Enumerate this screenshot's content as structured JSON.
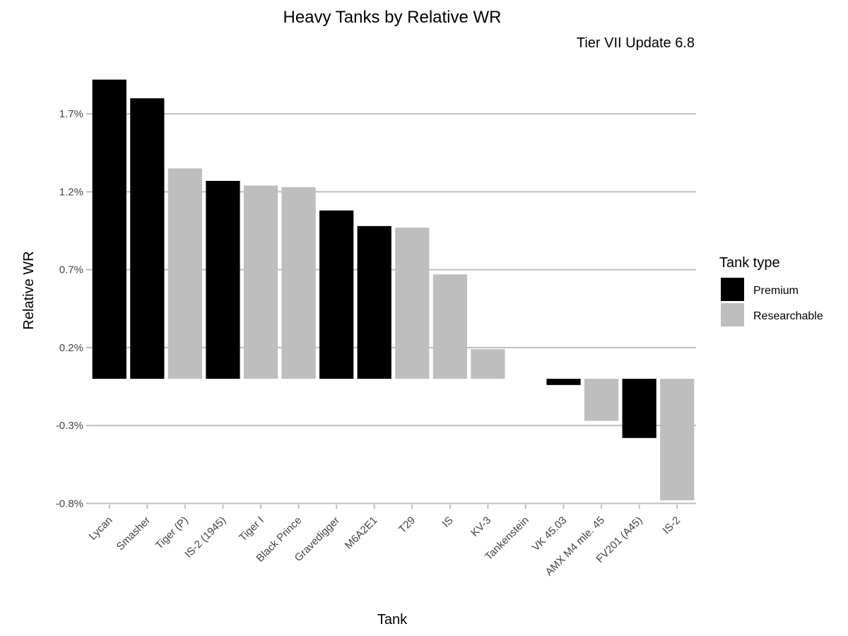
{
  "chart_data": {
    "type": "bar",
    "title": "Heavy Tanks by Relative WR",
    "subtitle": "Tier VII Update 6.8",
    "xlabel": "Tank",
    "ylabel": "Relative WR",
    "ylim": [
      -0.85,
      1.95
    ],
    "yticks": [
      {
        "value": 1.7,
        "label": "1.7%"
      },
      {
        "value": 1.2,
        "label": "1.2%"
      },
      {
        "value": 0.7,
        "label": "0.7%"
      },
      {
        "value": 0.2,
        "label": "0.2%"
      },
      {
        "value": -0.3,
        "label": "-0.3%"
      },
      {
        "value": -0.8,
        "label": "-0.8%"
      }
    ],
    "grid": "horizontal major",
    "legend": {
      "title": "Tank type",
      "position": "right",
      "items": [
        {
          "name": "Premium",
          "color": "#000000"
        },
        {
          "name": "Researchable",
          "color": "#BEBEBE"
        }
      ]
    },
    "categories": [
      "Lycan",
      "Smasher",
      "Tiger (P)",
      "IS-2 (1945)",
      "Tiger I",
      "Black Prince",
      "Gravedigger",
      "M6A2E1",
      "T29",
      "IS",
      "KV-3",
      "Tankenstein",
      "VK 45.03",
      "AMX M4 mle. 45",
      "FV201 (A45)",
      "IS-2"
    ],
    "values": [
      1.92,
      1.8,
      1.35,
      1.27,
      1.24,
      1.23,
      1.08,
      0.98,
      0.97,
      0.67,
      0.19,
      0.0,
      -0.04,
      -0.27,
      -0.38,
      -0.78
    ],
    "types": [
      "Premium",
      "Premium",
      "Researchable",
      "Premium",
      "Researchable",
      "Researchable",
      "Premium",
      "Premium",
      "Researchable",
      "Researchable",
      "Researchable",
      "Researchable",
      "Premium",
      "Researchable",
      "Premium",
      "Researchable"
    ]
  }
}
